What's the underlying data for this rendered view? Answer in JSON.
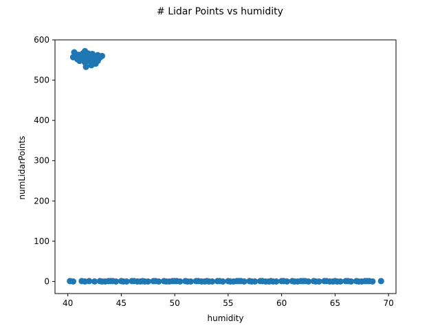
{
  "chart_data": {
    "type": "scatter",
    "title": "# Lidar Points vs humidity",
    "xlabel": "humidity",
    "ylabel": "numLidarPoints",
    "xlim": [
      38.8,
      70.7
    ],
    "ylim": [
      -30,
      600
    ],
    "xticks": [
      40,
      45,
      50,
      55,
      60,
      65,
      70
    ],
    "yticks": [
      0,
      100,
      200,
      300,
      400,
      500,
      600
    ],
    "grid": false,
    "legend": "none",
    "marker_color": "#1f77b4",
    "series": [
      {
        "points": [
          [
            40.6,
            569
          ],
          [
            40.5,
            557
          ],
          [
            40.9,
            552
          ],
          [
            41.0,
            563
          ],
          [
            41.1,
            548
          ],
          [
            41.2,
            560
          ],
          [
            41.3,
            555
          ],
          [
            41.4,
            566
          ],
          [
            41.5,
            550
          ],
          [
            41.6,
            572
          ],
          [
            41.6,
            544
          ],
          [
            41.7,
            533
          ],
          [
            41.8,
            558
          ],
          [
            41.9,
            562
          ],
          [
            42.0,
            547
          ],
          [
            42.1,
            555
          ],
          [
            42.2,
            537
          ],
          [
            42.3,
            565
          ],
          [
            42.4,
            551
          ],
          [
            42.5,
            559
          ],
          [
            42.6,
            541
          ],
          [
            42.7,
            553
          ],
          [
            42.8,
            562
          ],
          [
            43.0,
            556
          ],
          [
            43.2,
            560
          ],
          [
            41.2,
            553
          ],
          [
            41.9,
            566
          ],
          [
            42.4,
            544
          ],
          [
            41.5,
            559
          ],
          [
            42.8,
            548
          ],
          [
            40.2,
            1
          ],
          [
            40.5,
            0
          ],
          [
            41.3,
            1
          ],
          [
            41.6,
            0
          ],
          [
            42.0,
            1
          ],
          [
            42.5,
            0
          ],
          [
            43.0,
            1
          ],
          [
            43.5,
            0
          ],
          [
            44.0,
            1
          ],
          [
            44.5,
            0
          ],
          [
            45.0,
            1
          ],
          [
            45.5,
            0
          ],
          [
            46.0,
            1
          ],
          [
            46.5,
            0
          ],
          [
            47.0,
            1
          ],
          [
            47.5,
            0
          ],
          [
            48.0,
            1
          ],
          [
            48.5,
            0
          ],
          [
            49.0,
            1
          ],
          [
            49.5,
            0
          ],
          [
            50.0,
            1
          ],
          [
            50.5,
            0
          ],
          [
            51.0,
            1
          ],
          [
            51.5,
            0
          ],
          [
            52.0,
            1
          ],
          [
            52.5,
            0
          ],
          [
            53.0,
            1
          ],
          [
            53.5,
            0
          ],
          [
            54.0,
            1
          ],
          [
            54.5,
            0
          ],
          [
            55.0,
            1
          ],
          [
            55.5,
            0
          ],
          [
            56.0,
            1
          ],
          [
            56.5,
            0
          ],
          [
            57.0,
            1
          ],
          [
            57.5,
            0
          ],
          [
            58.0,
            1
          ],
          [
            58.5,
            0
          ],
          [
            59.0,
            1
          ],
          [
            59.5,
            0
          ],
          [
            60.0,
            1
          ],
          [
            60.5,
            0
          ],
          [
            61.0,
            1
          ],
          [
            61.5,
            0
          ],
          [
            62.0,
            1
          ],
          [
            62.5,
            0
          ],
          [
            63.0,
            1
          ],
          [
            63.5,
            0
          ],
          [
            64.0,
            1
          ],
          [
            64.5,
            0
          ],
          [
            65.0,
            1
          ],
          [
            65.5,
            0
          ],
          [
            66.0,
            1
          ],
          [
            66.5,
            0
          ],
          [
            67.0,
            1
          ],
          [
            67.5,
            0
          ],
          [
            68.0,
            1
          ],
          [
            68.5,
            0
          ],
          [
            69.3,
            1
          ],
          [
            43.2,
            0
          ],
          [
            44.2,
            1
          ],
          [
            45.2,
            0
          ],
          [
            46.2,
            1
          ],
          [
            47.2,
            0
          ],
          [
            48.2,
            1
          ],
          [
            49.2,
            0
          ],
          [
            50.2,
            1
          ],
          [
            51.2,
            0
          ],
          [
            52.2,
            1
          ],
          [
            53.2,
            0
          ],
          [
            54.2,
            1
          ],
          [
            55.2,
            0
          ],
          [
            56.2,
            1
          ],
          [
            57.2,
            0
          ],
          [
            58.2,
            1
          ],
          [
            59.2,
            0
          ],
          [
            60.2,
            1
          ],
          [
            61.2,
            0
          ],
          [
            62.2,
            1
          ],
          [
            63.2,
            0
          ],
          [
            64.2,
            1
          ],
          [
            65.2,
            0
          ],
          [
            66.2,
            1
          ],
          [
            67.2,
            0
          ],
          [
            68.2,
            1
          ],
          [
            43.8,
            1
          ],
          [
            46.8,
            0
          ],
          [
            49.8,
            1
          ],
          [
            52.8,
            0
          ],
          [
            55.8,
            1
          ],
          [
            58.8,
            0
          ],
          [
            61.8,
            1
          ],
          [
            64.8,
            0
          ],
          [
            67.8,
            1
          ]
        ]
      }
    ]
  }
}
